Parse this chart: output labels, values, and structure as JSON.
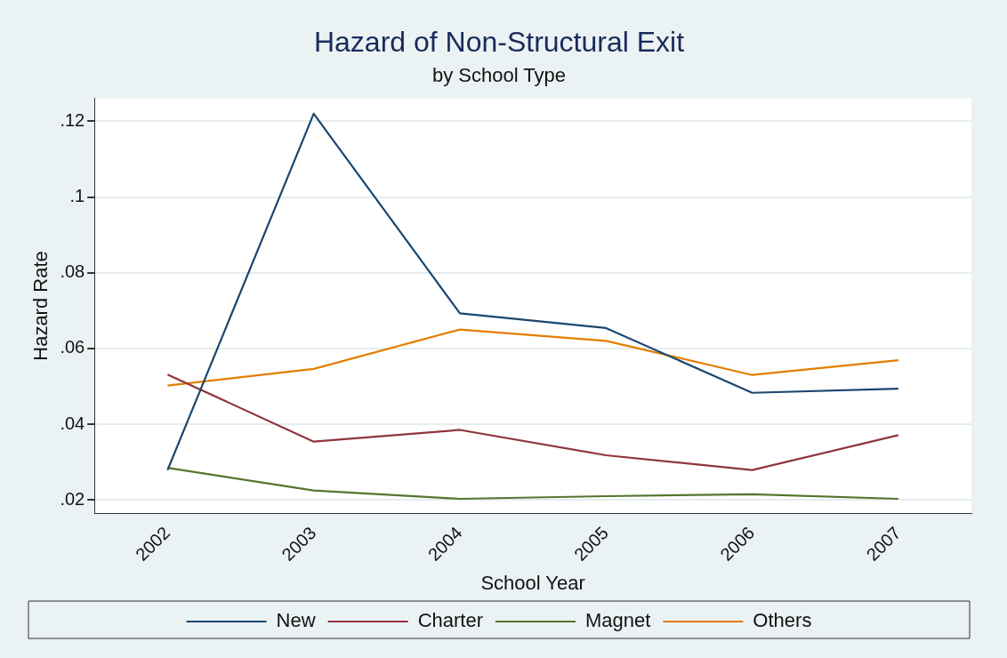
{
  "chart_data": {
    "type": "line",
    "title": "Hazard of Non-Structural Exit",
    "subtitle": "by School Type",
    "xlabel": "School Year",
    "ylabel": "Hazard Rate",
    "categories": [
      "2002",
      "2003",
      "2004",
      "2005",
      "2006",
      "2007"
    ],
    "series": [
      {
        "name": "New",
        "color": "#1a476f",
        "values": [
          0.0279,
          0.122,
          0.0693,
          0.0654,
          0.0483,
          0.0494
        ]
      },
      {
        "name": "Charter",
        "color": "#90353b",
        "values": [
          0.0531,
          0.0354,
          0.0385,
          0.0318,
          0.0279,
          0.0371
        ]
      },
      {
        "name": "Magnet",
        "color": "#55752f",
        "values": [
          0.0285,
          0.0225,
          0.0203,
          0.021,
          0.0215,
          0.0203
        ]
      },
      {
        "name": "Others",
        "color": "#e37e00",
        "values": [
          0.0502,
          0.0546,
          0.065,
          0.062,
          0.053,
          0.0569
        ]
      }
    ],
    "ylim": [
      0.0165,
      0.126
    ],
    "yticks": [
      {
        "value": 0.02,
        "label": ".02"
      },
      {
        "value": 0.04,
        "label": ".04"
      },
      {
        "value": 0.06,
        "label": ".06"
      },
      {
        "value": 0.08,
        "label": ".08"
      },
      {
        "value": 0.1,
        "label": ".1"
      },
      {
        "value": 0.12,
        "label": ".12"
      }
    ],
    "grid": "y",
    "legend": "bottom",
    "marker": "none",
    "line_style": "solid"
  }
}
